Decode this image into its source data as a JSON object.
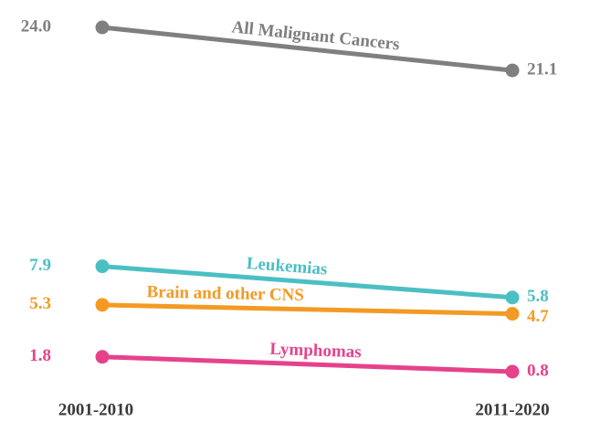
{
  "chart_data": {
    "type": "line",
    "categories": [
      "2001-2010",
      "2011-2020"
    ],
    "series": [
      {
        "name": "All Malignant Cancers",
        "color": "#7f7f7f",
        "values": [
          24.0,
          21.1
        ],
        "value_labels": [
          "24.0",
          "21.1"
        ]
      },
      {
        "name": "Leukemias",
        "color": "#4bbfc3",
        "values": [
          7.9,
          5.8
        ],
        "value_labels": [
          "7.9",
          "5.8"
        ]
      },
      {
        "name": "Brain and other CNS",
        "color": "#f39a24",
        "values": [
          5.3,
          4.7
        ],
        "value_labels": [
          "5.3",
          "4.7"
        ]
      },
      {
        "name": "Lymphomas",
        "color": "#e6428c",
        "values": [
          1.8,
          0.8
        ],
        "value_labels": [
          "1.8",
          "0.8"
        ]
      }
    ]
  }
}
